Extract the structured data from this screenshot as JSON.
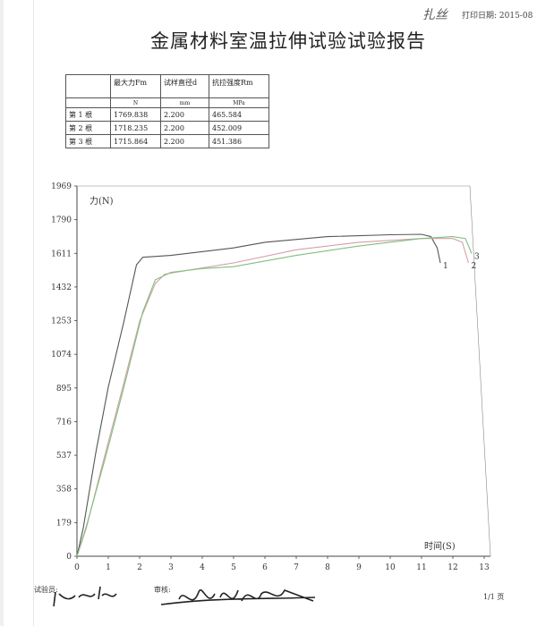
{
  "header": {
    "handwritten_mark": "扎丝",
    "print_date": "打印日期: 2015-08"
  },
  "report_title": "金属材料室温拉伸试验试验报告",
  "results_table": {
    "headers": [
      "",
      "最大力Fm",
      "试样直径d",
      "抗拉强度Rm"
    ],
    "units": [
      "",
      "N",
      "mm",
      "MPa"
    ],
    "rows": [
      [
        "第 1 根",
        "1769.838",
        "2.200",
        "465.584"
      ],
      [
        "第 2 根",
        "1718.235",
        "2.200",
        "452.009"
      ],
      [
        "第 3 根",
        "1715.864",
        "2.200",
        "451.386"
      ]
    ]
  },
  "chart_data": {
    "type": "line",
    "ylabel": "力(N)",
    "xlabel": "时间(S)",
    "y_ticks": [
      "0",
      "179",
      "358",
      "537",
      "716",
      "895",
      "1074",
      "1253",
      "1432",
      "1611",
      "1790",
      "1969"
    ],
    "x_ticks": [
      "0",
      "1",
      "2",
      "3",
      "4",
      "5",
      "6",
      "7",
      "8",
      "9",
      "10",
      "11",
      "12",
      "13"
    ],
    "ylim": [
      0,
      1969
    ],
    "xlim": [
      0,
      13
    ],
    "grid": false,
    "series": [
      {
        "name": "1",
        "color": "#555555",
        "points": [
          [
            0,
            0
          ],
          [
            0.2,
            150
          ],
          [
            0.6,
            550
          ],
          [
            1.0,
            900
          ],
          [
            1.5,
            1250
          ],
          [
            1.9,
            1550
          ],
          [
            2.1,
            1590
          ],
          [
            3,
            1600
          ],
          [
            5,
            1640
          ],
          [
            6,
            1670
          ],
          [
            8,
            1700
          ],
          [
            10,
            1710
          ],
          [
            11,
            1712
          ],
          [
            11.3,
            1700
          ],
          [
            11.5,
            1640
          ],
          [
            11.6,
            1560
          ]
        ]
      },
      {
        "name": "2",
        "color": "#d4a0a8",
        "points": [
          [
            0,
            0
          ],
          [
            0.3,
            150
          ],
          [
            0.8,
            480
          ],
          [
            1.4,
            860
          ],
          [
            2.0,
            1250
          ],
          [
            2.5,
            1450
          ],
          [
            2.8,
            1500
          ],
          [
            3.5,
            1520
          ],
          [
            5,
            1560
          ],
          [
            7,
            1630
          ],
          [
            9,
            1670
          ],
          [
            11,
            1690
          ],
          [
            12,
            1690
          ],
          [
            12.3,
            1670
          ],
          [
            12.5,
            1560
          ]
        ]
      },
      {
        "name": "3",
        "color": "#7fbf7f",
        "points": [
          [
            0,
            0
          ],
          [
            0.3,
            160
          ],
          [
            0.9,
            520
          ],
          [
            1.5,
            900
          ],
          [
            2.1,
            1300
          ],
          [
            2.5,
            1470
          ],
          [
            3.0,
            1510
          ],
          [
            4,
            1530
          ],
          [
            5,
            1540
          ],
          [
            7,
            1600
          ],
          [
            9,
            1650
          ],
          [
            11,
            1690
          ],
          [
            12,
            1700
          ],
          [
            12.4,
            1690
          ],
          [
            12.6,
            1610
          ]
        ]
      }
    ]
  },
  "footer": {
    "tester_label": "试验员:",
    "reviewer_label": "审核:",
    "page": "1/1 页"
  }
}
